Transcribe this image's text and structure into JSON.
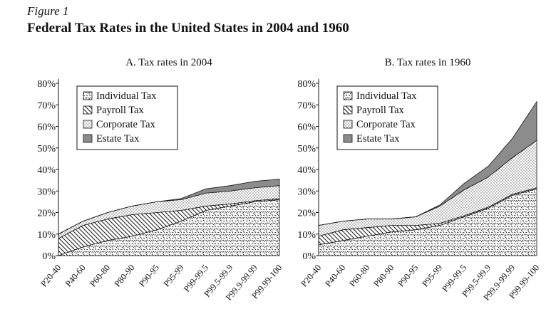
{
  "figure": {
    "label": "Figure 1",
    "title": "Federal Tax Rates in the United States in 2004 and 1960"
  },
  "chart_data": [
    {
      "type": "area",
      "stacked": true,
      "title": "A. Tax rates in 2004",
      "xlabel": "",
      "ylabel": "",
      "ylim": [
        0,
        80
      ],
      "yticks": [
        "0%",
        "10%",
        "20%",
        "30%",
        "40%",
        "50%",
        "60%",
        "70%",
        "80%"
      ],
      "categories": [
        "P20-40",
        "P40-60",
        "P60-80",
        "P80-90",
        "P90-95",
        "P95-99",
        "P99-99.5",
        "P99.5-99.9",
        "P99.9-99.99",
        "P99.99-100"
      ],
      "legend_position": "top-left",
      "grid": false,
      "series": [
        {
          "name": "Individual Tax",
          "pattern": "individual",
          "values": [
            0,
            4,
            7,
            9,
            12,
            16,
            21,
            23,
            25,
            26
          ]
        },
        {
          "name": "Payroll Tax",
          "pattern": "payroll",
          "values": [
            8,
            10,
            10,
            10,
            8,
            5,
            2,
            1,
            0.5,
            0.5
          ]
        },
        {
          "name": "Corporate Tax",
          "pattern": "corporate",
          "values": [
            2,
            2,
            3,
            4,
            5,
            5,
            6,
            6,
            6,
            6
          ]
        },
        {
          "name": "Estate Tax",
          "pattern": "estate",
          "values": [
            0,
            0,
            0,
            0,
            0,
            0.5,
            2,
            2.5,
            3,
            3
          ]
        }
      ]
    },
    {
      "type": "area",
      "stacked": true,
      "title": "B. Tax rates in 1960",
      "xlabel": "",
      "ylabel": "",
      "ylim": [
        0,
        80
      ],
      "yticks": [
        "0%",
        "10%",
        "20%",
        "30%",
        "40%",
        "50%",
        "60%",
        "70%",
        "80%"
      ],
      "categories": [
        "P20-40",
        "P40-60",
        "P60-80",
        "P80-90",
        "P90-95",
        "P95-99",
        "P99-99.5",
        "P99.5-99.9",
        "P99.9-99.99",
        "P99.99-100"
      ],
      "legend_position": "top-left",
      "grid": false,
      "series": [
        {
          "name": "Individual Tax",
          "pattern": "individual",
          "values": [
            5,
            7,
            9,
            11,
            12,
            14,
            18,
            22,
            28,
            31
          ]
        },
        {
          "name": "Payroll Tax",
          "pattern": "payroll",
          "values": [
            4,
            5,
            4,
            3,
            2,
            1,
            0.5,
            0.5,
            0.5,
            0.5
          ]
        },
        {
          "name": "Corporate Tax",
          "pattern": "corporate",
          "values": [
            5,
            4,
            4,
            3,
            4,
            8,
            12,
            14,
            17,
            22
          ]
        },
        {
          "name": "Estate Tax",
          "pattern": "estate",
          "values": [
            0,
            0,
            0,
            0,
            0,
            0.5,
            3,
            5,
            9,
            18
          ]
        }
      ]
    }
  ]
}
